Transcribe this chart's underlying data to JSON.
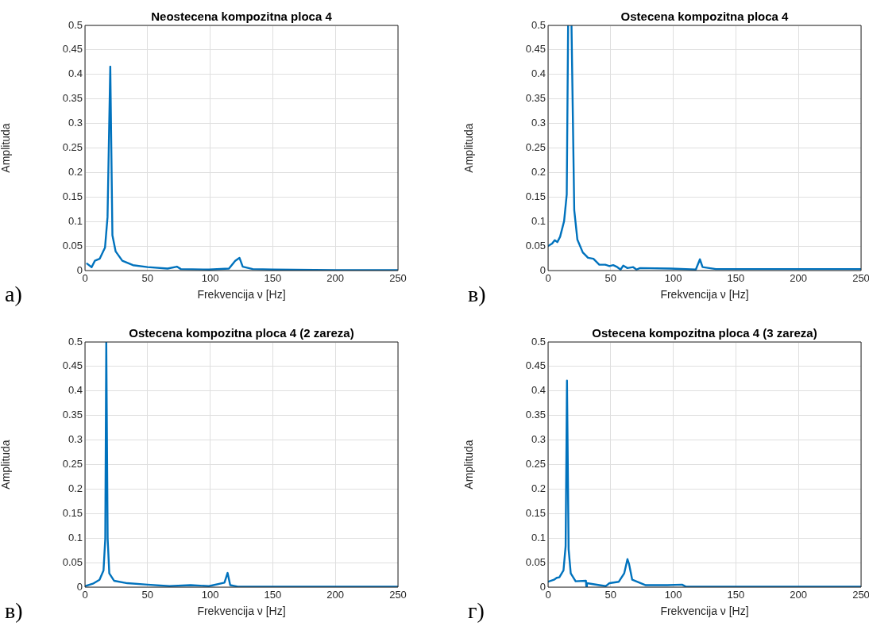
{
  "chart_data": [
    {
      "type": "line",
      "title": "Neostecena kompozitna ploca 4",
      "xlabel": "Frekvencija ν [Hz]",
      "ylabel": "Amplituda",
      "annotations": [
        "a)"
      ],
      "xlim": [
        0,
        250
      ],
      "xticks": [
        0,
        50,
        100,
        150,
        200,
        250
      ],
      "ylim": [
        0,
        0.5
      ],
      "yticks": [
        0,
        0.05,
        0.1,
        0.15,
        0.2,
        0.25,
        0.3,
        0.35,
        0.4,
        0.45,
        0.5
      ],
      "grid": true,
      "marker": "none",
      "line_style": "solid",
      "series": [
        {
          "color": "#0072bd",
          "x": [
            1.7,
            5.3,
            7.9,
            11.7,
            16,
            18,
            20.2,
            21.9,
            24.5,
            29.8,
            38.3,
            50,
            66,
            73.4,
            76.6,
            99,
            115,
            120,
            123.4,
            126,
            134,
            150,
            200,
            250
          ],
          "values": [
            0.014,
            0.007,
            0.02,
            0.024,
            0.047,
            0.109,
            0.416,
            0.072,
            0.039,
            0.02,
            0.011,
            0.007,
            0.004,
            0.008,
            0.003,
            0.002,
            0.004,
            0.02,
            0.026,
            0.008,
            0.003,
            0.002,
            0.001,
            0.001
          ]
        }
      ]
    },
    {
      "type": "line",
      "title": "Ostecena kompozitna ploca 4",
      "xlabel": "Frekvencija ν [Hz]",
      "ylabel": "Amplituda",
      "annotations": [
        "в)"
      ],
      "xlim": [
        0,
        250
      ],
      "xticks": [
        0,
        50,
        100,
        150,
        200,
        250
      ],
      "ylim": [
        0,
        0.5
      ],
      "yticks": [
        0,
        0.05,
        0.1,
        0.15,
        0.2,
        0.25,
        0.3,
        0.35,
        0.4,
        0.45,
        0.5
      ],
      "grid": true,
      "marker": "none",
      "line_style": "solid",
      "series": [
        {
          "color": "#0072bd",
          "x": [
            0,
            3.2,
            5.3,
            7.4,
            9.6,
            12.8,
            14.9,
            16,
            17,
            18.7,
            20.9,
            23.4,
            27.7,
            31.9,
            36.2,
            40.9,
            45.7,
            49,
            52,
            55.3,
            57.9,
            60,
            63.4,
            68,
            70.6,
            73.4,
            97.9,
            118,
            121.3,
            123.4,
            134,
            200,
            250
          ],
          "values": [
            0.05,
            0.055,
            0.062,
            0.058,
            0.069,
            0.101,
            0.155,
            0.5,
            null,
            0.5,
            0.123,
            0.063,
            0.037,
            0.026,
            0.024,
            0.012,
            0.012,
            0.009,
            0.011,
            0.007,
            0.002,
            0.01,
            0.005,
            0.007,
            0.002,
            0.005,
            0.004,
            0.002,
            0.023,
            0.007,
            0.003,
            0.003,
            0.003
          ]
        }
      ]
    },
    {
      "type": "line",
      "title": "Ostecena kompozitna ploca 4 (2 zareza)",
      "xlabel": "Frekvencija ν [Hz]",
      "ylabel": "Amplituda",
      "annotations": [
        "в)"
      ],
      "xlim": [
        0,
        250
      ],
      "xticks": [
        0,
        50,
        100,
        150,
        200,
        250
      ],
      "ylim": [
        0,
        0.5
      ],
      "yticks": [
        0,
        0.05,
        0.1,
        0.15,
        0.2,
        0.25,
        0.3,
        0.35,
        0.4,
        0.45,
        0.5
      ],
      "grid": true,
      "marker": "none",
      "line_style": "solid",
      "series": [
        {
          "color": "#0072bd",
          "x": [
            0,
            6.3,
            11.6,
            14.8,
            16.2,
            17,
            18.1,
            19.4,
            23.2,
            33.8,
            50,
            67.5,
            84.4,
            99,
            111.4,
            113.9,
            116,
            122,
            250
          ],
          "values": [
            0.002,
            0.007,
            0.015,
            0.034,
            0.099,
            0.5,
            0.099,
            0.028,
            0.013,
            0.008,
            0.005,
            0.002,
            0.004,
            0.002,
            0.009,
            0.029,
            0.004,
            0.001,
            0.001
          ]
        }
      ]
    },
    {
      "type": "line",
      "title": "Ostecena kompozitna ploca 4 (3 zareza)",
      "xlabel": "Frekvencija ν [Hz]",
      "ylabel": "Amplituda",
      "annotations": [
        "г)"
      ],
      "xlim": [
        0,
        250
      ],
      "xticks": [
        0,
        50,
        100,
        150,
        200,
        250
      ],
      "ylim": [
        0,
        0.5
      ],
      "yticks": [
        0,
        0.05,
        0.1,
        0.15,
        0.2,
        0.25,
        0.3,
        0.35,
        0.4,
        0.45,
        0.5
      ],
      "grid": true,
      "marker": "none",
      "line_style": "solid",
      "series": [
        {
          "color": "#0072bd",
          "x": [
            0,
            4.7,
            6.9,
            9,
            12.3,
            14,
            15.1,
            16.4,
            18.1,
            22,
            30.2,
            30.6,
            31,
            46,
            49,
            56.5,
            60.8,
            63.4,
            64.7,
            67.2,
            78,
            95.3,
            107,
            110,
            250
          ],
          "values": [
            0.011,
            0.015,
            0.019,
            0.02,
            0.034,
            0.083,
            0.421,
            0.077,
            0.028,
            0.012,
            0.013,
            0,
            0.008,
            0.002,
            0.008,
            0.011,
            0.028,
            0.057,
            0.047,
            0.015,
            0.004,
            0.004,
            0.005,
            0.001,
            0.001
          ]
        }
      ]
    }
  ]
}
